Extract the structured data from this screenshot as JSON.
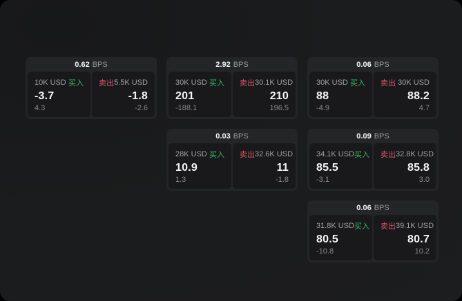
{
  "labels": {
    "bps_unit": "BPS",
    "buy": "买入",
    "sell": "卖出"
  },
  "colors": {
    "page_background": "#000000",
    "surface": "#1b1c1d",
    "card": "#242527",
    "panel": "#19191b",
    "buy_accent": "#3cb563",
    "sell_accent": "#d75569",
    "primary_text": "#f5f6f7",
    "secondary_text": "#a0a1a3",
    "muted_text": "#87888a"
  },
  "cards": [
    {
      "bps": "0.62",
      "buy": {
        "amount": "10K USD",
        "price": "-3.7",
        "delta": "4.3"
      },
      "sell": {
        "amount": "5.5K USD",
        "price": "-1.8",
        "delta": "-2.6"
      }
    },
    {
      "bps": "2.92",
      "buy": {
        "amount": "30K USD",
        "price": "201",
        "delta": "-188.1"
      },
      "sell": {
        "amount": "30.1K USD",
        "price": "210",
        "delta": "196.5"
      }
    },
    {
      "bps": "0.06",
      "buy": {
        "amount": "30K USD",
        "price": "88",
        "delta": "-4.9"
      },
      "sell": {
        "amount": "30K USD",
        "price": "88.2",
        "delta": "4.7"
      }
    },
    {
      "bps": "0.03",
      "buy": {
        "amount": "28K USD",
        "price": "10.9",
        "delta": "1.3"
      },
      "sell": {
        "amount": "32.6K USD",
        "price": "11",
        "delta": "-1.8"
      }
    },
    {
      "bps": "0.09",
      "buy": {
        "amount": "34.1K USD",
        "price": "85.5",
        "delta": "-3.1"
      },
      "sell": {
        "amount": "32.8K USD",
        "price": "85.8",
        "delta": "3.0"
      }
    },
    {
      "bps": "0.06",
      "buy": {
        "amount": "31.8K USD",
        "price": "80.5",
        "delta": "-10.8"
      },
      "sell": {
        "amount": "39.1K USD",
        "price": "80.7",
        "delta": "10.2"
      }
    }
  ]
}
